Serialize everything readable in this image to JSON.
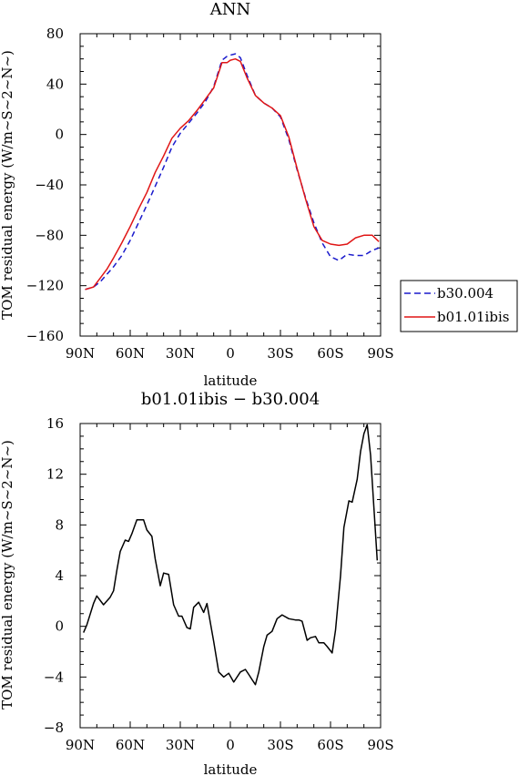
{
  "chart_data": [
    {
      "type": "line",
      "title": "ANN",
      "xlabel": "latitude",
      "ylabel": "TOM residual energy (W/m~S~2~N~)",
      "xlim": [
        90,
        -90
      ],
      "ylim": [
        -160,
        80
      ],
      "x_ticks": [
        90,
        60,
        30,
        0,
        -30,
        -60,
        -90
      ],
      "x_tick_labels": [
        "90N",
        "60N",
        "30N",
        "0",
        "30S",
        "60S",
        "90S"
      ],
      "y_ticks": [
        80,
        40,
        0,
        -40,
        -80,
        -120,
        -160
      ],
      "y_tick_labels": [
        "80",
        "40",
        "0",
        "−40",
        "−80",
        "−120",
        "−160"
      ],
      "legend": {
        "position": "right",
        "entries": [
          "b30.004",
          "b01.01ibis"
        ]
      },
      "series": [
        {
          "name": "b30.004",
          "color": "#1a1acc",
          "style": "dashed",
          "x": [
            87,
            82,
            78,
            74,
            70,
            65,
            60,
            55,
            50,
            45,
            40,
            35,
            30,
            25,
            20,
            15,
            10,
            5,
            2,
            0,
            -3,
            -6,
            -10,
            -15,
            -20,
            -25,
            -30,
            -35,
            -40,
            -45,
            -50,
            -55,
            -60,
            -65,
            -70,
            -75,
            -80,
            -85,
            -89
          ],
          "y": [
            -123,
            -121,
            -117,
            -111,
            -105,
            -96,
            -84,
            -70,
            -56,
            -41,
            -26,
            -10,
            1,
            9,
            17,
            26,
            38,
            59,
            62,
            63,
            64,
            61,
            47,
            31,
            25,
            21,
            14,
            -4,
            -28,
            -50,
            -70,
            -86,
            -97,
            -100,
            -95,
            -96,
            -96,
            -92,
            -90
          ]
        },
        {
          "name": "b01.01ibis",
          "color": "#e01515",
          "style": "solid",
          "x": [
            87,
            82,
            78,
            74,
            70,
            65,
            60,
            55,
            50,
            45,
            40,
            35,
            30,
            25,
            20,
            15,
            10,
            5,
            2,
            0,
            -3,
            -6,
            -10,
            -15,
            -20,
            -25,
            -30,
            -35,
            -40,
            -45,
            -50,
            -55,
            -60,
            -65,
            -70,
            -75,
            -80,
            -85,
            -89
          ],
          "y": [
            -123,
            -121,
            -114,
            -107,
            -98,
            -86,
            -73,
            -59,
            -46,
            -30,
            -17,
            -3,
            5,
            11,
            19,
            28,
            37,
            57,
            57,
            59,
            60,
            58,
            45,
            31,
            25,
            21,
            15,
            -2,
            -27,
            -51,
            -73,
            -84,
            -87,
            -88,
            -87,
            -82,
            -80,
            -80,
            -85
          ]
        }
      ]
    },
    {
      "type": "line",
      "title": "b01.01ibis − b30.004",
      "xlabel": "latitude",
      "ylabel": "TOM residual energy (W/m~S~2~N~)",
      "xlim": [
        90,
        -90
      ],
      "ylim": [
        -8,
        16
      ],
      "x_ticks": [
        90,
        60,
        30,
        0,
        -30,
        -60,
        -90
      ],
      "x_tick_labels": [
        "90N",
        "60N",
        "30N",
        "0",
        "30S",
        "60S",
        "90S"
      ],
      "y_ticks": [
        16,
        12,
        8,
        4,
        0,
        -4,
        -8
      ],
      "y_tick_labels": [
        "16",
        "12",
        "8",
        "4",
        "0",
        "−4",
        "−8"
      ],
      "series": [
        {
          "color": "#000000",
          "style": "solid",
          "x": [
            88,
            86,
            82,
            80,
            76,
            72,
            70,
            68,
            66,
            63,
            61,
            59,
            56,
            52,
            50,
            47,
            45,
            42,
            40,
            37,
            34,
            31,
            29,
            26,
            24,
            22,
            19,
            16,
            14,
            10,
            7,
            4,
            1,
            -2,
            -6,
            -9,
            -11,
            -13,
            -15,
            -17,
            -20,
            -22,
            -25,
            -28,
            -31,
            -35,
            -39,
            -41,
            -43,
            -46,
            -48,
            -51,
            -53,
            -56,
            -58,
            -61,
            -63,
            -66,
            -68,
            -71,
            -73,
            -76,
            -78,
            -80,
            -82,
            -84,
            -86,
            -88
          ],
          "y": [
            -0.5,
            0.1,
            1.8,
            2.4,
            1.7,
            2.3,
            2.8,
            4.4,
            5.9,
            6.8,
            6.7,
            7.3,
            8.4,
            8.4,
            7.6,
            7.1,
            5.3,
            3.2,
            4.2,
            4.1,
            1.7,
            0.8,
            0.8,
            -0.1,
            -0.2,
            1.5,
            1.9,
            1.1,
            1.8,
            -1.2,
            -3.6,
            -4.0,
            -3.7,
            -4.4,
            -3.6,
            -3.4,
            -3.8,
            -4.2,
            -4.6,
            -3.6,
            -1.6,
            -0.7,
            -0.4,
            0.6,
            0.9,
            0.6,
            0.5,
            0.5,
            0.4,
            -1.1,
            -0.9,
            -0.8,
            -1.3,
            -1.3,
            -1.6,
            -2.1,
            -0.3,
            4.0,
            7.8,
            9.9,
            9.8,
            11.6,
            13.8,
            15.2,
            15.9,
            13.5,
            9.3,
            5.2
          ]
        }
      ]
    }
  ]
}
